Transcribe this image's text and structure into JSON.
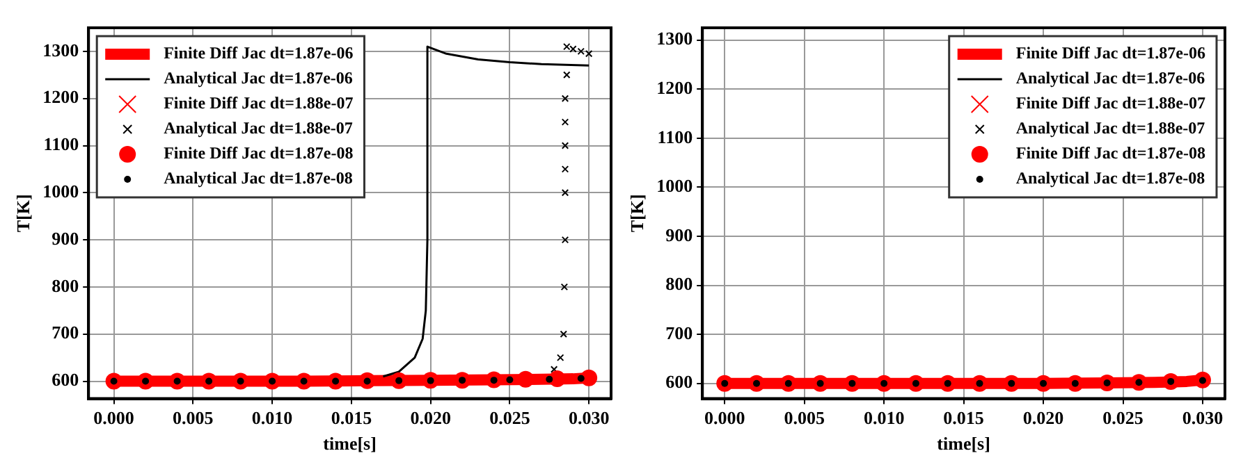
{
  "chart_data": [
    {
      "type": "line",
      "xlabel": "time[s]",
      "ylabel": "T[K]",
      "xlim": [
        -0.0016,
        0.0314
      ],
      "ylim": [
        563,
        1350
      ],
      "xticks": [
        {
          "value": 0,
          "label": "0.000"
        },
        {
          "value": 0.005,
          "label": "0.005"
        },
        {
          "value": 0.01,
          "label": "0.010"
        },
        {
          "value": 0.015,
          "label": "0.015"
        },
        {
          "value": 0.02,
          "label": "0.020"
        },
        {
          "value": 0.025,
          "label": "0.025"
        },
        {
          "value": 0.03,
          "label": "0.030"
        }
      ],
      "yticks": [
        600,
        700,
        800,
        900,
        1000,
        1100,
        1200,
        1300
      ],
      "grid": true,
      "legend": "top left",
      "series": [
        {
          "name": "Finite Diff Jac dt=1.87e-06",
          "type": "line",
          "marker": "none",
          "color": "#ff0000",
          "x": [
            0,
            0.004,
            0.008,
            0.012,
            0.016,
            0.02,
            0.024,
            0.027,
            0.029,
            0.03
          ],
          "values": [
            600,
            600,
            600,
            600,
            601,
            602,
            603,
            604,
            605,
            607
          ]
        },
        {
          "name": "Analytical Jac dt=1.87e-06",
          "type": "line",
          "marker": "none",
          "color": "#000000",
          "x": [
            0.017,
            0.018,
            0.019,
            0.0195,
            0.0197,
            0.0198,
            0.0198,
            0.021,
            0.023,
            0.025,
            0.027,
            0.03
          ],
          "values": [
            610,
            620,
            650,
            690,
            750,
            900,
            1310,
            1295,
            1283,
            1277,
            1273,
            1270
          ]
        },
        {
          "name": "Finite Diff Jac dt=1.88e-07",
          "type": "scatter",
          "marker": "cross",
          "color": "#ff0000"
        },
        {
          "name": "Analytical Jac dt=1.88e-07",
          "type": "scatter",
          "marker": "cross",
          "color": "#000000",
          "x": [
            0.0278,
            0.0282,
            0.0284,
            0.02845,
            0.0285,
            0.0285,
            0.0285,
            0.0285,
            0.0285,
            0.0285,
            0.0286,
            0.0286,
            0.029,
            0.0295,
            0.03
          ],
          "values": [
            625,
            650,
            700,
            800,
            900,
            1000,
            1050,
            1100,
            1150,
            1200,
            1250,
            1310,
            1305,
            1300,
            1295
          ]
        },
        {
          "name": "Finite Diff Jac dt=1.87e-08",
          "type": "scatter",
          "marker": "circle",
          "color": "#ff0000",
          "x": [
            0,
            0.002,
            0.004,
            0.006,
            0.008,
            0.01,
            0.012,
            0.014,
            0.016,
            0.018,
            0.02,
            0.022,
            0.024,
            0.026,
            0.028,
            0.03
          ],
          "values": [
            600,
            600,
            600,
            600,
            600,
            600,
            600,
            600,
            601,
            601,
            602,
            602,
            603,
            604,
            605,
            607
          ]
        },
        {
          "name": "Analytical Jac dt=1.87e-08",
          "type": "scatter",
          "marker": "circle",
          "color": "#000000",
          "x": [
            0,
            0.002,
            0.004,
            0.006,
            0.008,
            0.01,
            0.012,
            0.014,
            0.016,
            0.018,
            0.02,
            0.022,
            0.024,
            0.025,
            0.0275,
            0.0295
          ],
          "values": [
            600,
            600,
            600,
            600,
            600,
            600,
            600,
            600,
            600,
            601,
            601,
            602,
            602,
            603,
            604,
            606
          ]
        }
      ]
    },
    {
      "type": "line",
      "xlabel": "time[s]",
      "ylabel": "T[K]",
      "xlim": [
        -0.0014,
        0.0314
      ],
      "ylim": [
        569,
        1325
      ],
      "xticks": [
        {
          "value": 0,
          "label": "0.000"
        },
        {
          "value": 0.005,
          "label": "0.005"
        },
        {
          "value": 0.01,
          "label": "0.010"
        },
        {
          "value": 0.015,
          "label": "0.015"
        },
        {
          "value": 0.02,
          "label": "0.020"
        },
        {
          "value": 0.025,
          "label": "0.025"
        },
        {
          "value": 0.03,
          "label": "0.030"
        }
      ],
      "yticks": [
        600,
        700,
        800,
        900,
        1000,
        1100,
        1200,
        1300
      ],
      "grid": true,
      "legend": "top right",
      "series": [
        {
          "name": "Finite Diff Jac dt=1.87e-06",
          "type": "line",
          "marker": "none",
          "color": "#ff0000",
          "x": [
            0,
            0.004,
            0.008,
            0.012,
            0.016,
            0.02,
            0.024,
            0.027,
            0.029,
            0.03
          ],
          "values": [
            600,
            600,
            600,
            600,
            600,
            600,
            601,
            602,
            604,
            607
          ]
        },
        {
          "name": "Analytical Jac dt=1.87e-06",
          "type": "line",
          "marker": "none",
          "color": "#000000"
        },
        {
          "name": "Finite Diff Jac dt=1.88e-07",
          "type": "scatter",
          "marker": "cross",
          "color": "#ff0000"
        },
        {
          "name": "Analytical Jac dt=1.88e-07",
          "type": "scatter",
          "marker": "cross",
          "color": "#000000"
        },
        {
          "name": "Finite Diff Jac dt=1.87e-08",
          "type": "scatter",
          "marker": "circle",
          "color": "#ff0000",
          "x": [
            0,
            0.002,
            0.004,
            0.006,
            0.008,
            0.01,
            0.012,
            0.014,
            0.016,
            0.018,
            0.02,
            0.022,
            0.024,
            0.026,
            0.028,
            0.03
          ],
          "values": [
            600,
            600,
            600,
            600,
            600,
            600,
            600,
            600,
            600,
            600,
            600,
            600,
            601,
            602,
            604,
            607
          ]
        },
        {
          "name": "Analytical Jac dt=1.87e-08",
          "type": "scatter",
          "marker": "circle",
          "color": "#000000",
          "x": [
            0,
            0.002,
            0.004,
            0.006,
            0.008,
            0.01,
            0.012,
            0.014,
            0.016,
            0.018,
            0.02,
            0.022,
            0.024,
            0.026,
            0.028,
            0.03
          ],
          "values": [
            600,
            600,
            600,
            600,
            600,
            600,
            600,
            600,
            600,
            600,
            600,
            600,
            601,
            602,
            604,
            606
          ]
        }
      ]
    }
  ]
}
